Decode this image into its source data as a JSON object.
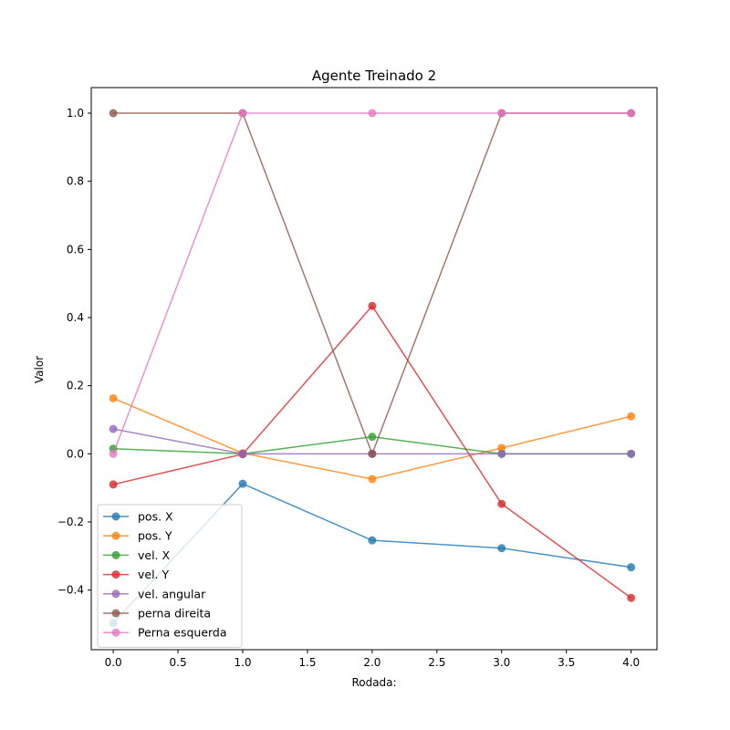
{
  "chart_data": {
    "type": "line",
    "title": "Agente Treinado 2",
    "xlabel": "Rodada:",
    "ylabel": "Valor",
    "x": [
      0,
      1,
      2,
      3,
      4
    ],
    "xlim": [
      -0.17,
      4.2
    ],
    "ylim": [
      -0.575,
      1.075
    ],
    "xticks": [
      0.0,
      0.5,
      1.0,
      1.5,
      2.0,
      2.5,
      3.0,
      3.5,
      4.0
    ],
    "xtick_labels": [
      "0.0",
      "0.5",
      "1.0",
      "1.5",
      "2.0",
      "2.5",
      "3.0",
      "3.5",
      "4.0"
    ],
    "yticks": [
      -0.4,
      -0.2,
      0.0,
      0.2,
      0.4,
      0.6,
      0.8,
      1.0
    ],
    "ytick_labels": [
      "−0.4",
      "−0.2",
      "0.0",
      "0.2",
      "0.4",
      "0.6",
      "0.8",
      "1.0"
    ],
    "grid": false,
    "legend_position": "lower-left",
    "series": [
      {
        "name": "pos. X",
        "color": "#1f77b4",
        "values": [
          -0.497,
          -0.088,
          -0.254,
          -0.277,
          -0.333
        ]
      },
      {
        "name": "pos. Y",
        "color": "#ff7f0e",
        "values": [
          0.163,
          0.002,
          -0.074,
          0.017,
          0.11
        ]
      },
      {
        "name": "vel. X",
        "color": "#2ca02c",
        "values": [
          0.015,
          0.0,
          0.05,
          0.0,
          0.0
        ]
      },
      {
        "name": "vel. Y",
        "color": "#d62728",
        "values": [
          -0.09,
          -0.001,
          0.434,
          -0.147,
          -0.423
        ]
      },
      {
        "name": "vel. angular",
        "color": "#9467bd",
        "values": [
          0.073,
          0.0,
          0.0,
          0.0,
          0.0
        ]
      },
      {
        "name": "perna direita",
        "color": "#8c564b",
        "values": [
          1.0,
          1.0,
          0.0,
          1.0,
          1.0
        ]
      },
      {
        "name": "Perna esquerda",
        "color": "#e377c2",
        "values": [
          0.0,
          1.0,
          1.0,
          1.0,
          1.0
        ]
      }
    ]
  }
}
